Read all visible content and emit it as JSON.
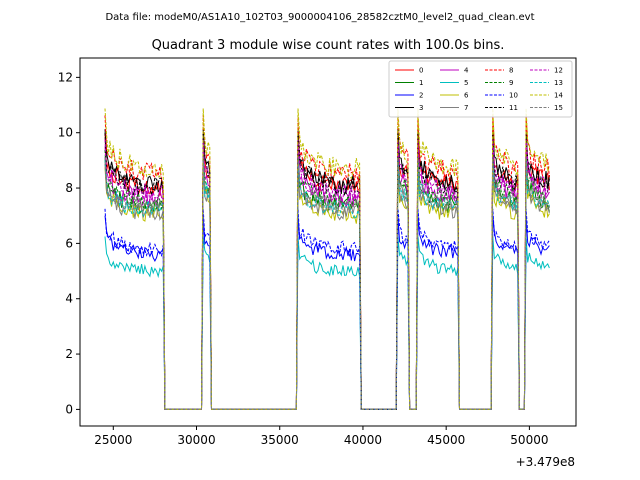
{
  "figure": {
    "suptitle": "Data file: modeM0/AS1A10_102T03_9000004106_28582cztM0_level2_quad_clean.evt"
  },
  "chart_data": {
    "type": "line",
    "title": "Quadrant 3 module wise count rates with 100.0s bins.",
    "xlabel": "",
    "ylabel": "",
    "x_offset_label": "+3.479e8",
    "xlim": [
      23000,
      52800
    ],
    "ylim": [
      -0.6,
      12.7
    ],
    "x_ticks": [
      25000,
      30000,
      35000,
      40000,
      45000,
      50000
    ],
    "y_ticks": [
      0,
      2,
      4,
      6,
      8,
      10,
      12
    ],
    "legend_location": "top-right",
    "legend_columns": 4,
    "active_segments": [
      [
        24500,
        28000
      ],
      [
        30400,
        30800
      ],
      [
        36100,
        39800
      ],
      [
        42100,
        42700
      ],
      [
        43300,
        45700
      ],
      [
        47800,
        49300
      ],
      [
        49800,
        51200
      ]
    ],
    "gap_segments": [
      [
        28200,
        30200
      ],
      [
        31000,
        36000
      ],
      [
        36650,
        36900
      ],
      [
        39950,
        42000
      ],
      [
        42800,
        43100
      ],
      [
        45900,
        47700
      ],
      [
        49350,
        49700
      ]
    ],
    "series": [
      {
        "name": "0",
        "color": "#ff0000",
        "dash": "solid",
        "level": 8.0
      },
      {
        "name": "1",
        "color": "#008000",
        "dash": "solid",
        "level": 7.3
      },
      {
        "name": "2",
        "color": "#0000ff",
        "dash": "solid",
        "level": 5.6
      },
      {
        "name": "3",
        "color": "#000000",
        "dash": "solid",
        "level": 8.1
      },
      {
        "name": "4",
        "color": "#bf00bf",
        "dash": "solid",
        "level": 7.6
      },
      {
        "name": "5",
        "color": "#00bfbf",
        "dash": "solid",
        "level": 5.0
      },
      {
        "name": "6",
        "color": "#bfbf00",
        "dash": "solid",
        "level": 7.0
      },
      {
        "name": "7",
        "color": "#808080",
        "dash": "solid",
        "level": 7.1
      },
      {
        "name": "8",
        "color": "#ff0000",
        "dash": "dashed",
        "level": 8.5
      },
      {
        "name": "9",
        "color": "#008000",
        "dash": "dashed",
        "level": 7.5
      },
      {
        "name": "10",
        "color": "#0000ff",
        "dash": "dashed",
        "level": 5.8
      },
      {
        "name": "11",
        "color": "#000000",
        "dash": "dashed",
        "level": 8.0
      },
      {
        "name": "12",
        "color": "#bf00bf",
        "dash": "dashed",
        "level": 7.8
      },
      {
        "name": "13",
        "color": "#00bfbf",
        "dash": "dashed",
        "level": 7.2
      },
      {
        "name": "14",
        "color": "#bfbf00",
        "dash": "dashed",
        "level": 8.7
      },
      {
        "name": "15",
        "color": "#808080",
        "dash": "dashed",
        "level": 7.3
      }
    ]
  }
}
